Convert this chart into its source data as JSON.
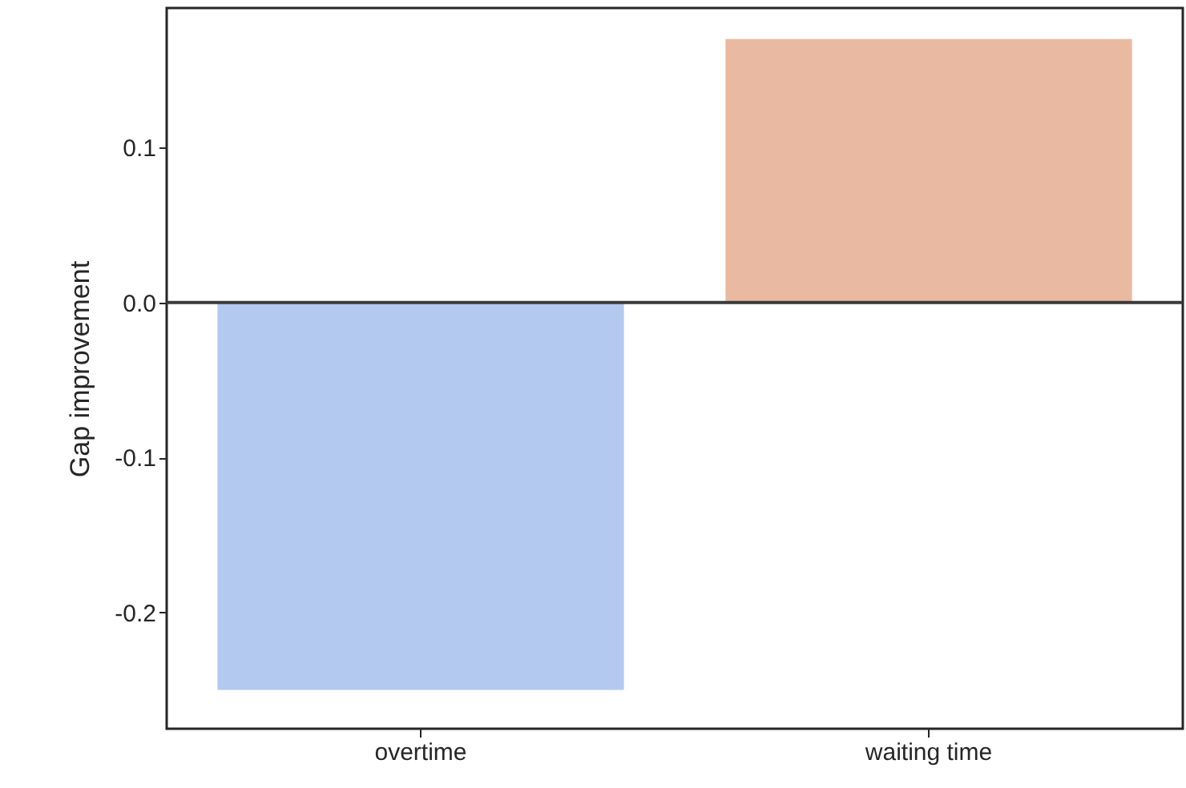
{
  "chart_data": {
    "type": "bar",
    "ylabel": "Gap improvement",
    "categories": [
      "overtime",
      "waiting time"
    ],
    "values": [
      -0.25,
      0.17
    ],
    "colors": [
      "#b3c9f0",
      "#eab9a1"
    ],
    "ylim": [
      -0.275,
      0.19
    ],
    "yticks": [
      -0.2,
      -0.1,
      {
        "value": 0,
        "label": "0.0"
      },
      0.1
    ],
    "ref_lines": [
      {
        "axis": "y",
        "value": 0,
        "color": "#3a3a3a"
      }
    ],
    "grid": false
  }
}
